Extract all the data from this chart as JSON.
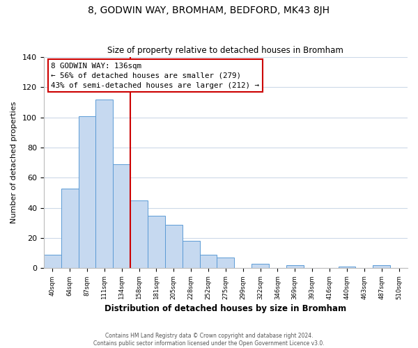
{
  "title": "8, GODWIN WAY, BROMHAM, BEDFORD, MK43 8JH",
  "subtitle": "Size of property relative to detached houses in Bromham",
  "xlabel": "Distribution of detached houses by size in Bromham",
  "ylabel": "Number of detached properties",
  "bar_labels": [
    "40sqm",
    "64sqm",
    "87sqm",
    "111sqm",
    "134sqm",
    "158sqm",
    "181sqm",
    "205sqm",
    "228sqm",
    "252sqm",
    "275sqm",
    "299sqm",
    "322sqm",
    "346sqm",
    "369sqm",
    "393sqm",
    "416sqm",
    "440sqm",
    "463sqm",
    "487sqm",
    "510sqm"
  ],
  "bar_heights": [
    9,
    53,
    101,
    112,
    69,
    45,
    35,
    29,
    18,
    9,
    7,
    0,
    3,
    0,
    2,
    0,
    0,
    1,
    0,
    2,
    0
  ],
  "bar_color": "#c6d9f0",
  "bar_edge_color": "#5b9bd5",
  "vline_color": "#cc0000",
  "annotation_text": "8 GODWIN WAY: 136sqm\n← 56% of detached houses are smaller (279)\n43% of semi-detached houses are larger (212) →",
  "annotation_box_color": "#ffffff",
  "annotation_box_edge": "#cc0000",
  "ylim": [
    0,
    140
  ],
  "yticks": [
    0,
    20,
    40,
    60,
    80,
    100,
    120,
    140
  ],
  "footer_line1": "Contains HM Land Registry data © Crown copyright and database right 2024.",
  "footer_line2": "Contains public sector information licensed under the Open Government Licence v3.0.",
  "background_color": "#ffffff",
  "grid_color": "#ccd9e8"
}
